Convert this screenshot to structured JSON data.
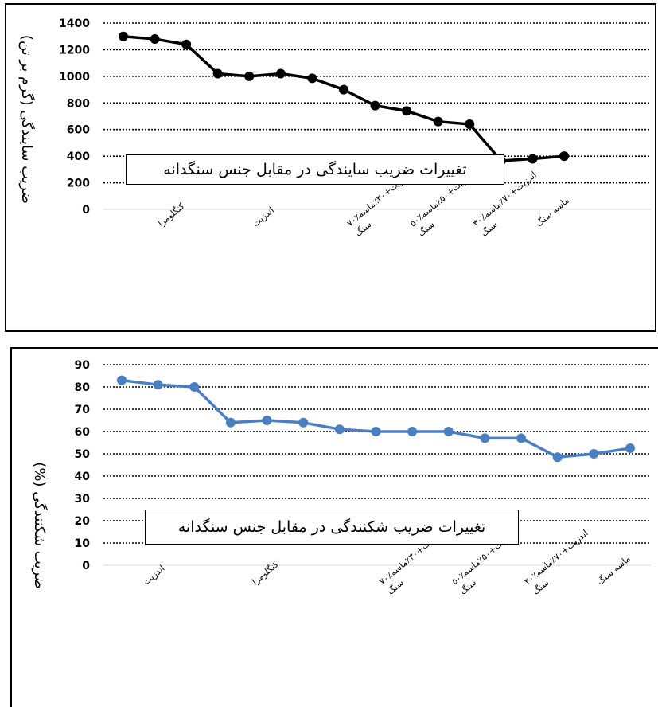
{
  "chart_data": [
    {
      "type": "line",
      "title": "تغییرات ضریب سایندگی در مقابل جنس سنگدانه",
      "ylabel": "ضریب سایندگی (گرم بر تن)",
      "xlabel": "",
      "ylim": [
        0,
        1400
      ],
      "yticks": [
        0,
        200,
        400,
        600,
        800,
        1000,
        1200,
        1400
      ],
      "grid": true,
      "legend": "none",
      "color": "#000000",
      "x": [
        1,
        2,
        3,
        4,
        5,
        6,
        7,
        8,
        9,
        10,
        11,
        12,
        13,
        14,
        15
      ],
      "values": [
        1300,
        1280,
        1240,
        1020,
        1000,
        1020,
        985,
        900,
        780,
        740,
        660,
        640,
        365,
        380,
        400
      ],
      "category_labels": [
        {
          "pos": 2,
          "lines": [
            "کنگلومرا"
          ]
        },
        {
          "pos": 5,
          "lines": [
            "اندزیت"
          ]
        },
        {
          "pos": 8,
          "lines": [
            "۷۰٪اندزیت+۳۰٪ماسه",
            "سنگ"
          ]
        },
        {
          "pos": 10,
          "lines": [
            "۵۰٪اندزیت+۵۰٪ماسه",
            "سنگ"
          ]
        },
        {
          "pos": 12,
          "lines": [
            "۳۰٪اندزیت+۷۰٪ماسه",
            "سنگ"
          ]
        },
        {
          "pos": 14,
          "lines": [
            "ماسه سنگ"
          ]
        }
      ]
    },
    {
      "type": "line",
      "title": "تغییرات ضریب شکنندگی در مقابل جنس سنگدانه",
      "ylabel": "ضریب شکنندگی (%)",
      "xlabel": "",
      "ylim": [
        0,
        90
      ],
      "yticks": [
        0,
        10,
        20,
        30,
        40,
        50,
        60,
        70,
        80,
        90
      ],
      "grid": true,
      "legend": "none",
      "color": "#4a7fc1",
      "x": [
        1,
        2,
        3,
        4,
        5,
        6,
        7,
        8,
        9,
        10,
        11,
        12,
        13,
        14,
        15
      ],
      "values": [
        83,
        81,
        80,
        64,
        65,
        64,
        61,
        60,
        60,
        60,
        57,
        57,
        48.5,
        50,
        52.5
      ],
      "category_labels": [
        {
          "pos": 1.5,
          "lines": [
            "اندزیت"
          ]
        },
        {
          "pos": 4.5,
          "lines": [
            "کنگلومرا"
          ]
        },
        {
          "pos": 8,
          "lines": [
            "۷۰٪اندزیت+۳۰٪ماسه",
            "سنگ"
          ]
        },
        {
          "pos": 10,
          "lines": [
            "۵۰٪اندزیت+۵۰٪ماسه",
            "سنگ"
          ]
        },
        {
          "pos": 12,
          "lines": [
            "۳۰٪اندزیت+۷۰٪ماسه",
            "سنگ"
          ]
        },
        {
          "pos": 14,
          "lines": [
            "ماسه سنگ"
          ]
        }
      ]
    }
  ]
}
